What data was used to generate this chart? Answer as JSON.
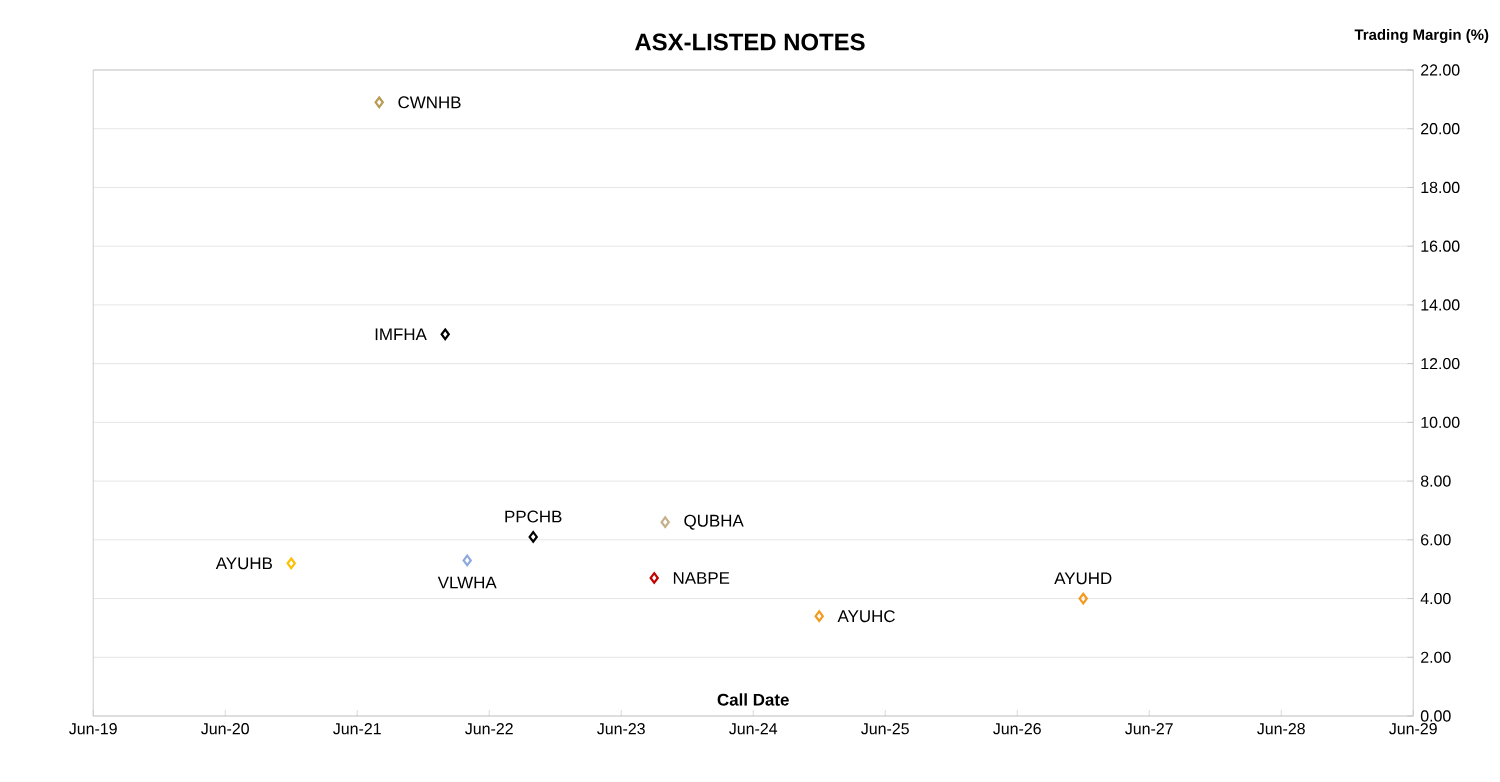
{
  "chart_data": {
    "type": "scatter",
    "title": "ASX-LISTED NOTES",
    "xlabel": "Call Date",
    "ylabel": "Trading Margin (%)",
    "x": [
      "2021-08",
      "2022-02",
      "2020-12",
      "2022-04",
      "2022-10",
      "2023-10",
      "2023-09",
      "2024-12",
      "2026-12"
    ],
    "values": [
      20.9,
      13.0,
      5.2,
      5.3,
      6.1,
      6.6,
      4.7,
      3.4,
      4.0
    ],
    "colors": [
      "#b89a52",
      "#000000",
      "#ffc000",
      "#8ea9db",
      "#000000",
      "#c4b08a",
      "#c00000",
      "#f39a1e",
      "#f39a1e"
    ],
    "marker": "diamond",
    "grid": "y",
    "xlim": [
      "2019-06",
      "2029-06"
    ],
    "xticks": [
      {
        "value": "2019-06",
        "label": "Jun-19"
      },
      {
        "value": "2020-06",
        "label": "Jun-20"
      },
      {
        "value": "2021-06",
        "label": "Jun-21"
      },
      {
        "value": "2022-06",
        "label": "Jun-22"
      },
      {
        "value": "2023-06",
        "label": "Jun-23"
      },
      {
        "value": "2024-06",
        "label": "Jun-24"
      },
      {
        "value": "2025-06",
        "label": "Jun-25"
      },
      {
        "value": "2026-06",
        "label": "Jun-26"
      },
      {
        "value": "2027-06",
        "label": "Jun-27"
      },
      {
        "value": "2028-06",
        "label": "Jun-28"
      },
      {
        "value": "2029-06",
        "label": "Jun-29"
      }
    ],
    "ylim": [
      0,
      22
    ],
    "yticks": [
      {
        "value": 0,
        "label": "0.00"
      },
      {
        "value": 2,
        "label": "2.00"
      },
      {
        "value": 4,
        "label": "4.00"
      },
      {
        "value": 6,
        "label": "6.00"
      },
      {
        "value": 8,
        "label": "8.00"
      },
      {
        "value": 10,
        "label": "10.00"
      },
      {
        "value": 12,
        "label": "12.00"
      },
      {
        "value": 14,
        "label": "14.00"
      },
      {
        "value": 16,
        "label": "16.00"
      },
      {
        "value": 18,
        "label": "18.00"
      },
      {
        "value": 20,
        "label": "20.00"
      },
      {
        "value": 22,
        "label": "22.00"
      }
    ],
    "annotations": [
      {
        "text": "CWNHB",
        "x": "2021-08",
        "y": 20.9
      },
      {
        "text": "IMFHA",
        "x": "2022-02",
        "y": 13.0
      },
      {
        "text": "AYUHB",
        "x": "2020-12",
        "y": 5.2
      },
      {
        "text": "VLWHA",
        "x": "2022-04",
        "y": 5.3
      },
      {
        "text": "PPCHB",
        "x": "2022-10",
        "y": 6.1
      },
      {
        "text": "QUBHA",
        "x": "2023-10",
        "y": 6.6
      },
      {
        "text": "NABPE",
        "x": "2023-09",
        "y": 4.7
      },
      {
        "text": "AYUHC",
        "x": "2024-12",
        "y": 3.4
      },
      {
        "text": "AYUHD",
        "x": "2026-12",
        "y": 4.0
      }
    ]
  }
}
